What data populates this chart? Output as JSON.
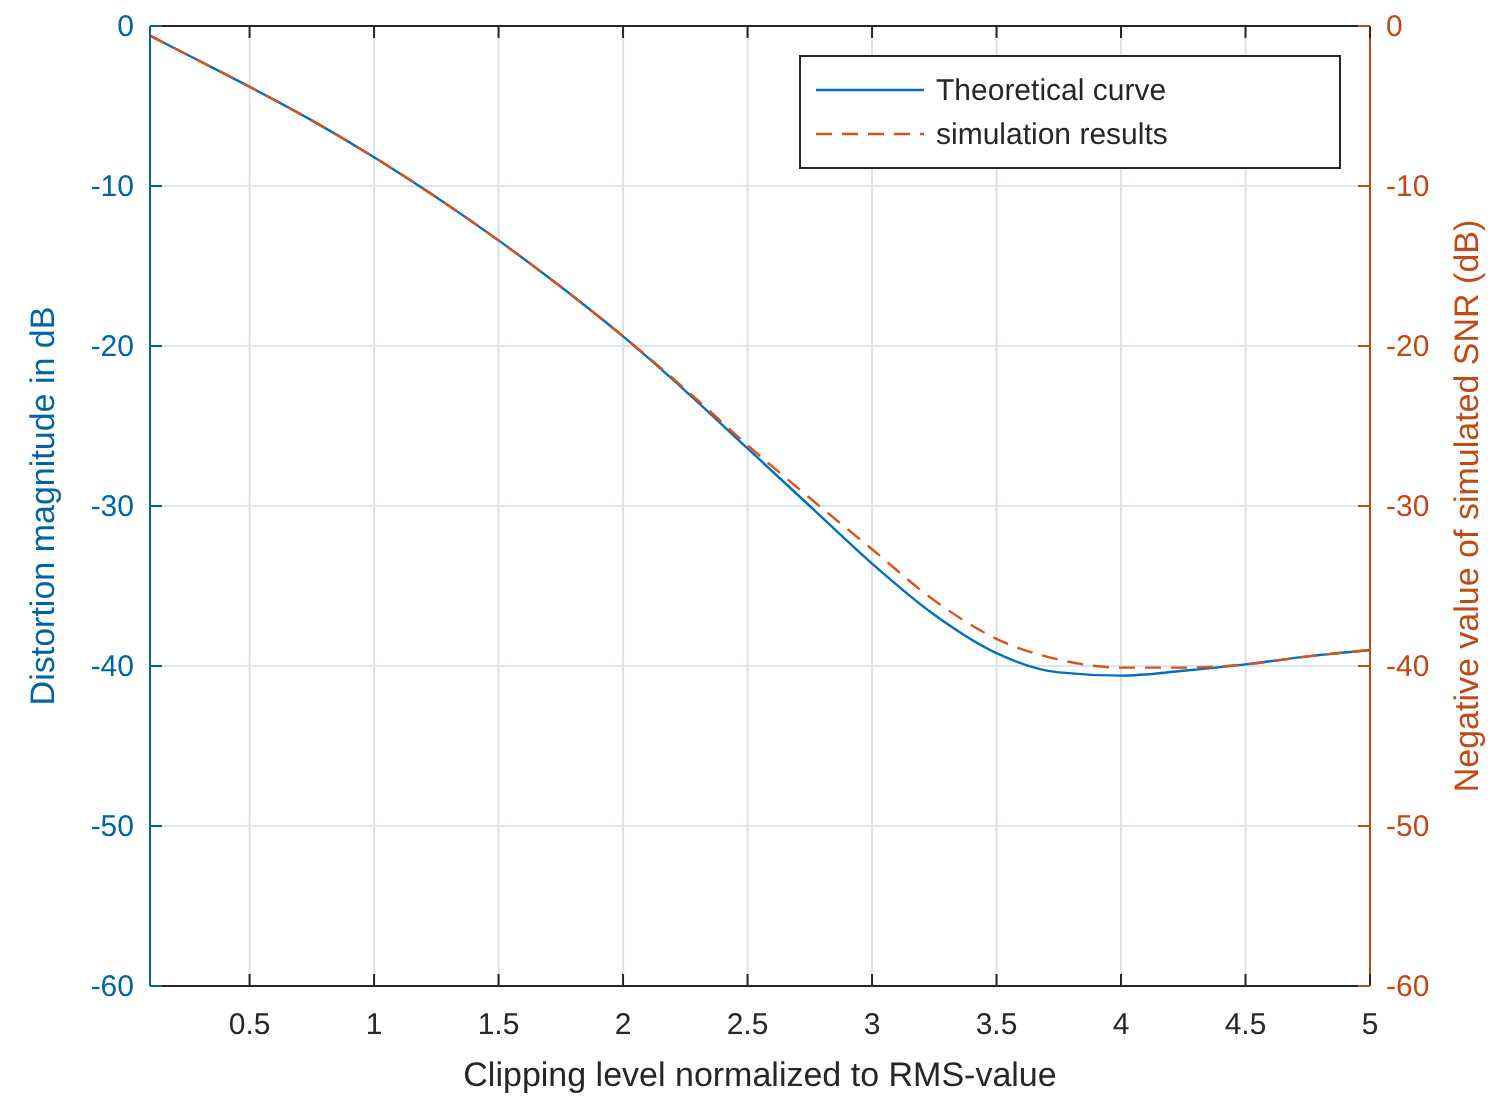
{
  "chart_data": {
    "type": "line",
    "xlabel": "Clipping level normalized to RMS-value",
    "ylabel": "Distortion magnitude in dB",
    "y2label": "Negative value of simulated SNR (dB)",
    "xlim": [
      0.1,
      5
    ],
    "xticks": [
      0.5,
      1,
      1.5,
      2,
      2.5,
      3,
      3.5,
      4,
      4.5,
      5
    ],
    "ylim": [
      -60,
      0
    ],
    "yticks": [
      -60,
      -50,
      -40,
      -30,
      -20,
      -10,
      0
    ],
    "y2lim": [
      -60,
      0
    ],
    "y2ticks": [
      -60,
      -50,
      -40,
      -30,
      -20,
      -10,
      0
    ],
    "grid": true,
    "legend": "top right",
    "series": [
      {
        "name": "Theoretical curve",
        "color": "#0072bd",
        "line_style": "solid",
        "x": [
          0.1,
          0.25,
          0.5,
          0.75,
          1,
          1.25,
          1.5,
          1.75,
          2,
          2.25,
          2.5,
          2.75,
          3,
          3.25,
          3.5,
          3.75,
          4,
          4.25,
          4.5,
          4.75,
          5
        ],
        "values": [
          -0.6,
          -1.8,
          -3.8,
          -5.9,
          -8.2,
          -10.7,
          -13.4,
          -16.3,
          -19.4,
          -22.8,
          -26.4,
          -30.0,
          -33.6,
          -36.8,
          -39.2,
          -40.4,
          -40.6,
          -40.3,
          -39.9,
          -39.4,
          -39.0
        ]
      },
      {
        "name": "simulation results",
        "color": "#d95319",
        "line_style": "dashed",
        "axis": "y2",
        "x": [
          0.1,
          0.25,
          0.5,
          0.75,
          1,
          1.25,
          1.5,
          1.75,
          2,
          2.25,
          2.5,
          2.75,
          3,
          3.25,
          3.5,
          3.75,
          4,
          4.25,
          4.5,
          4.75,
          5
        ],
        "values": [
          -0.6,
          -1.8,
          -3.8,
          -5.9,
          -8.2,
          -10.7,
          -13.4,
          -16.3,
          -19.4,
          -22.7,
          -26.2,
          -29.5,
          -32.7,
          -35.9,
          -38.3,
          -39.6,
          -40.1,
          -40.1,
          -39.9,
          -39.4,
          -39.0
        ]
      }
    ]
  }
}
